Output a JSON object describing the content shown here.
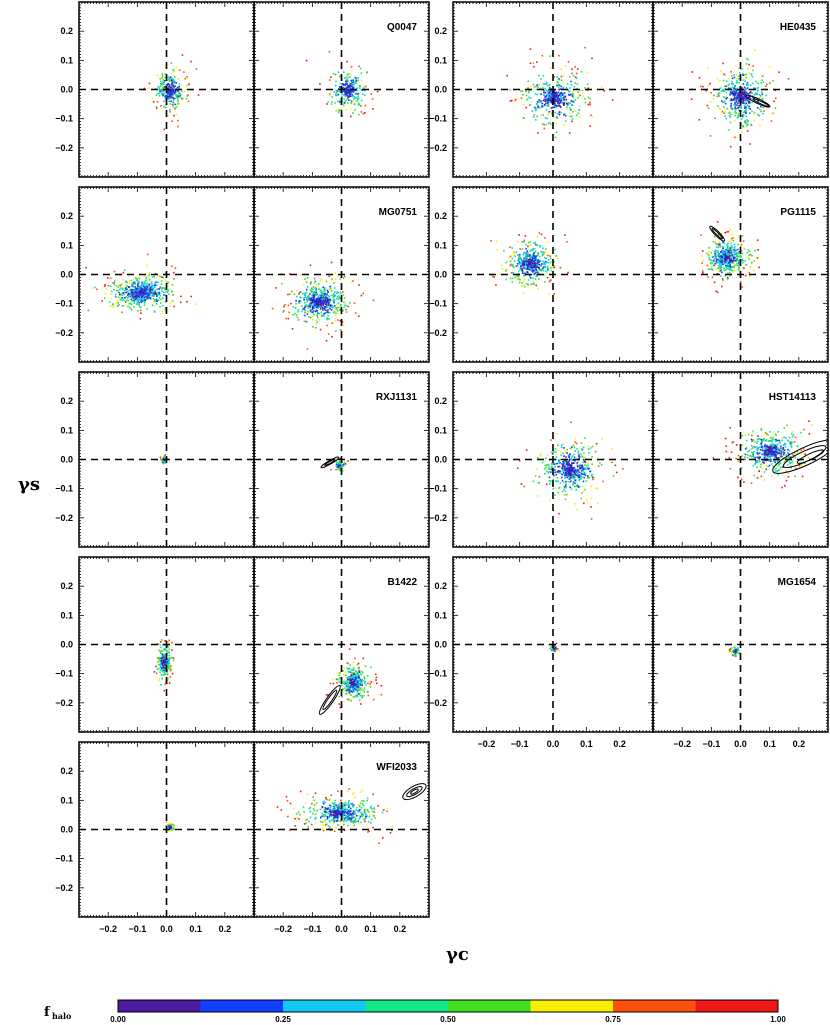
{
  "chart_data": {
    "type": "scatter",
    "title": "",
    "xlabel": "γc",
    "ylabel": "γs",
    "xlim": [
      -0.3,
      0.3
    ],
    "ylim": [
      -0.3,
      0.3
    ],
    "x_tick_labels": [
      "−0.2",
      "−0.1",
      "0.0",
      "0.1",
      "0.2"
    ],
    "y_tick_labels": [
      "0.2",
      "0.1",
      "0.0",
      "−0.1",
      "−0.2"
    ],
    "colorbar": {
      "label_main": "f",
      "label_sub": "halo",
      "tick_labels": [
        "0.00",
        "0.25",
        "0.50",
        "0.75",
        "1.00"
      ],
      "colors": [
        "#4a1aa0",
        "#1040ff",
        "#10c8f0",
        "#10e888",
        "#40e020",
        "#f8f000",
        "#ff5010",
        "#f01818"
      ]
    },
    "panels": [
      {
        "name": "Q0047",
        "left": {
          "cx": 0.01,
          "cy": 0.0,
          "sx": 0.025,
          "sy": 0.035,
          "n": 360
        },
        "right": {
          "cx": 0.02,
          "cy": 0.0,
          "sx": 0.03,
          "sy": 0.035,
          "n": 360
        }
      },
      {
        "name": "HE0435",
        "left": {
          "cx": 0.0,
          "cy": -0.03,
          "sx": 0.045,
          "sy": 0.045,
          "n": 520
        },
        "right": {
          "cx": 0.0,
          "cy": -0.02,
          "sx": 0.045,
          "sy": 0.05,
          "n": 520
        }
      },
      {
        "name": "MG0751",
        "left": {
          "cx": -0.09,
          "cy": -0.06,
          "sx": 0.055,
          "sy": 0.03,
          "n": 620
        },
        "right": {
          "cx": -0.08,
          "cy": -0.09,
          "sx": 0.05,
          "sy": 0.035,
          "n": 620
        }
      },
      {
        "name": "PG1115",
        "left": {
          "cx": -0.07,
          "cy": 0.04,
          "sx": 0.035,
          "sy": 0.035,
          "n": 520
        },
        "right": {
          "cx": -0.05,
          "cy": 0.06,
          "sx": 0.035,
          "sy": 0.03,
          "n": 520
        }
      },
      {
        "name": "RXJ1131",
        "left": {
          "cx": -0.01,
          "cy": 0.0,
          "sx": 0.006,
          "sy": 0.006,
          "n": 70
        },
        "right": {
          "cx": -0.01,
          "cy": -0.02,
          "sx": 0.008,
          "sy": 0.01,
          "n": 90
        }
      },
      {
        "name": "HST14113",
        "left": {
          "cx": 0.05,
          "cy": -0.03,
          "sx": 0.045,
          "sy": 0.045,
          "n": 540
        },
        "right": {
          "cx": 0.1,
          "cy": 0.03,
          "sx": 0.05,
          "sy": 0.035,
          "n": 560
        }
      },
      {
        "name": "B1422",
        "left": {
          "cx": -0.01,
          "cy": -0.06,
          "sx": 0.012,
          "sy": 0.03,
          "n": 300
        },
        "right": {
          "cx": 0.04,
          "cy": -0.13,
          "sx": 0.025,
          "sy": 0.03,
          "n": 430
        }
      },
      {
        "name": "MG1654",
        "left": {
          "cx": 0.0,
          "cy": -0.01,
          "sx": 0.006,
          "sy": 0.006,
          "n": 60
        },
        "right": {
          "cx": -0.02,
          "cy": -0.02,
          "sx": 0.008,
          "sy": 0.008,
          "n": 80
        }
      },
      {
        "name": "WFI2033",
        "left": {
          "cx": 0.01,
          "cy": 0.01,
          "sx": 0.006,
          "sy": 0.006,
          "n": 80
        },
        "right": {
          "cx": -0.01,
          "cy": 0.06,
          "sx": 0.06,
          "sy": 0.025,
          "n": 560
        }
      }
    ]
  }
}
